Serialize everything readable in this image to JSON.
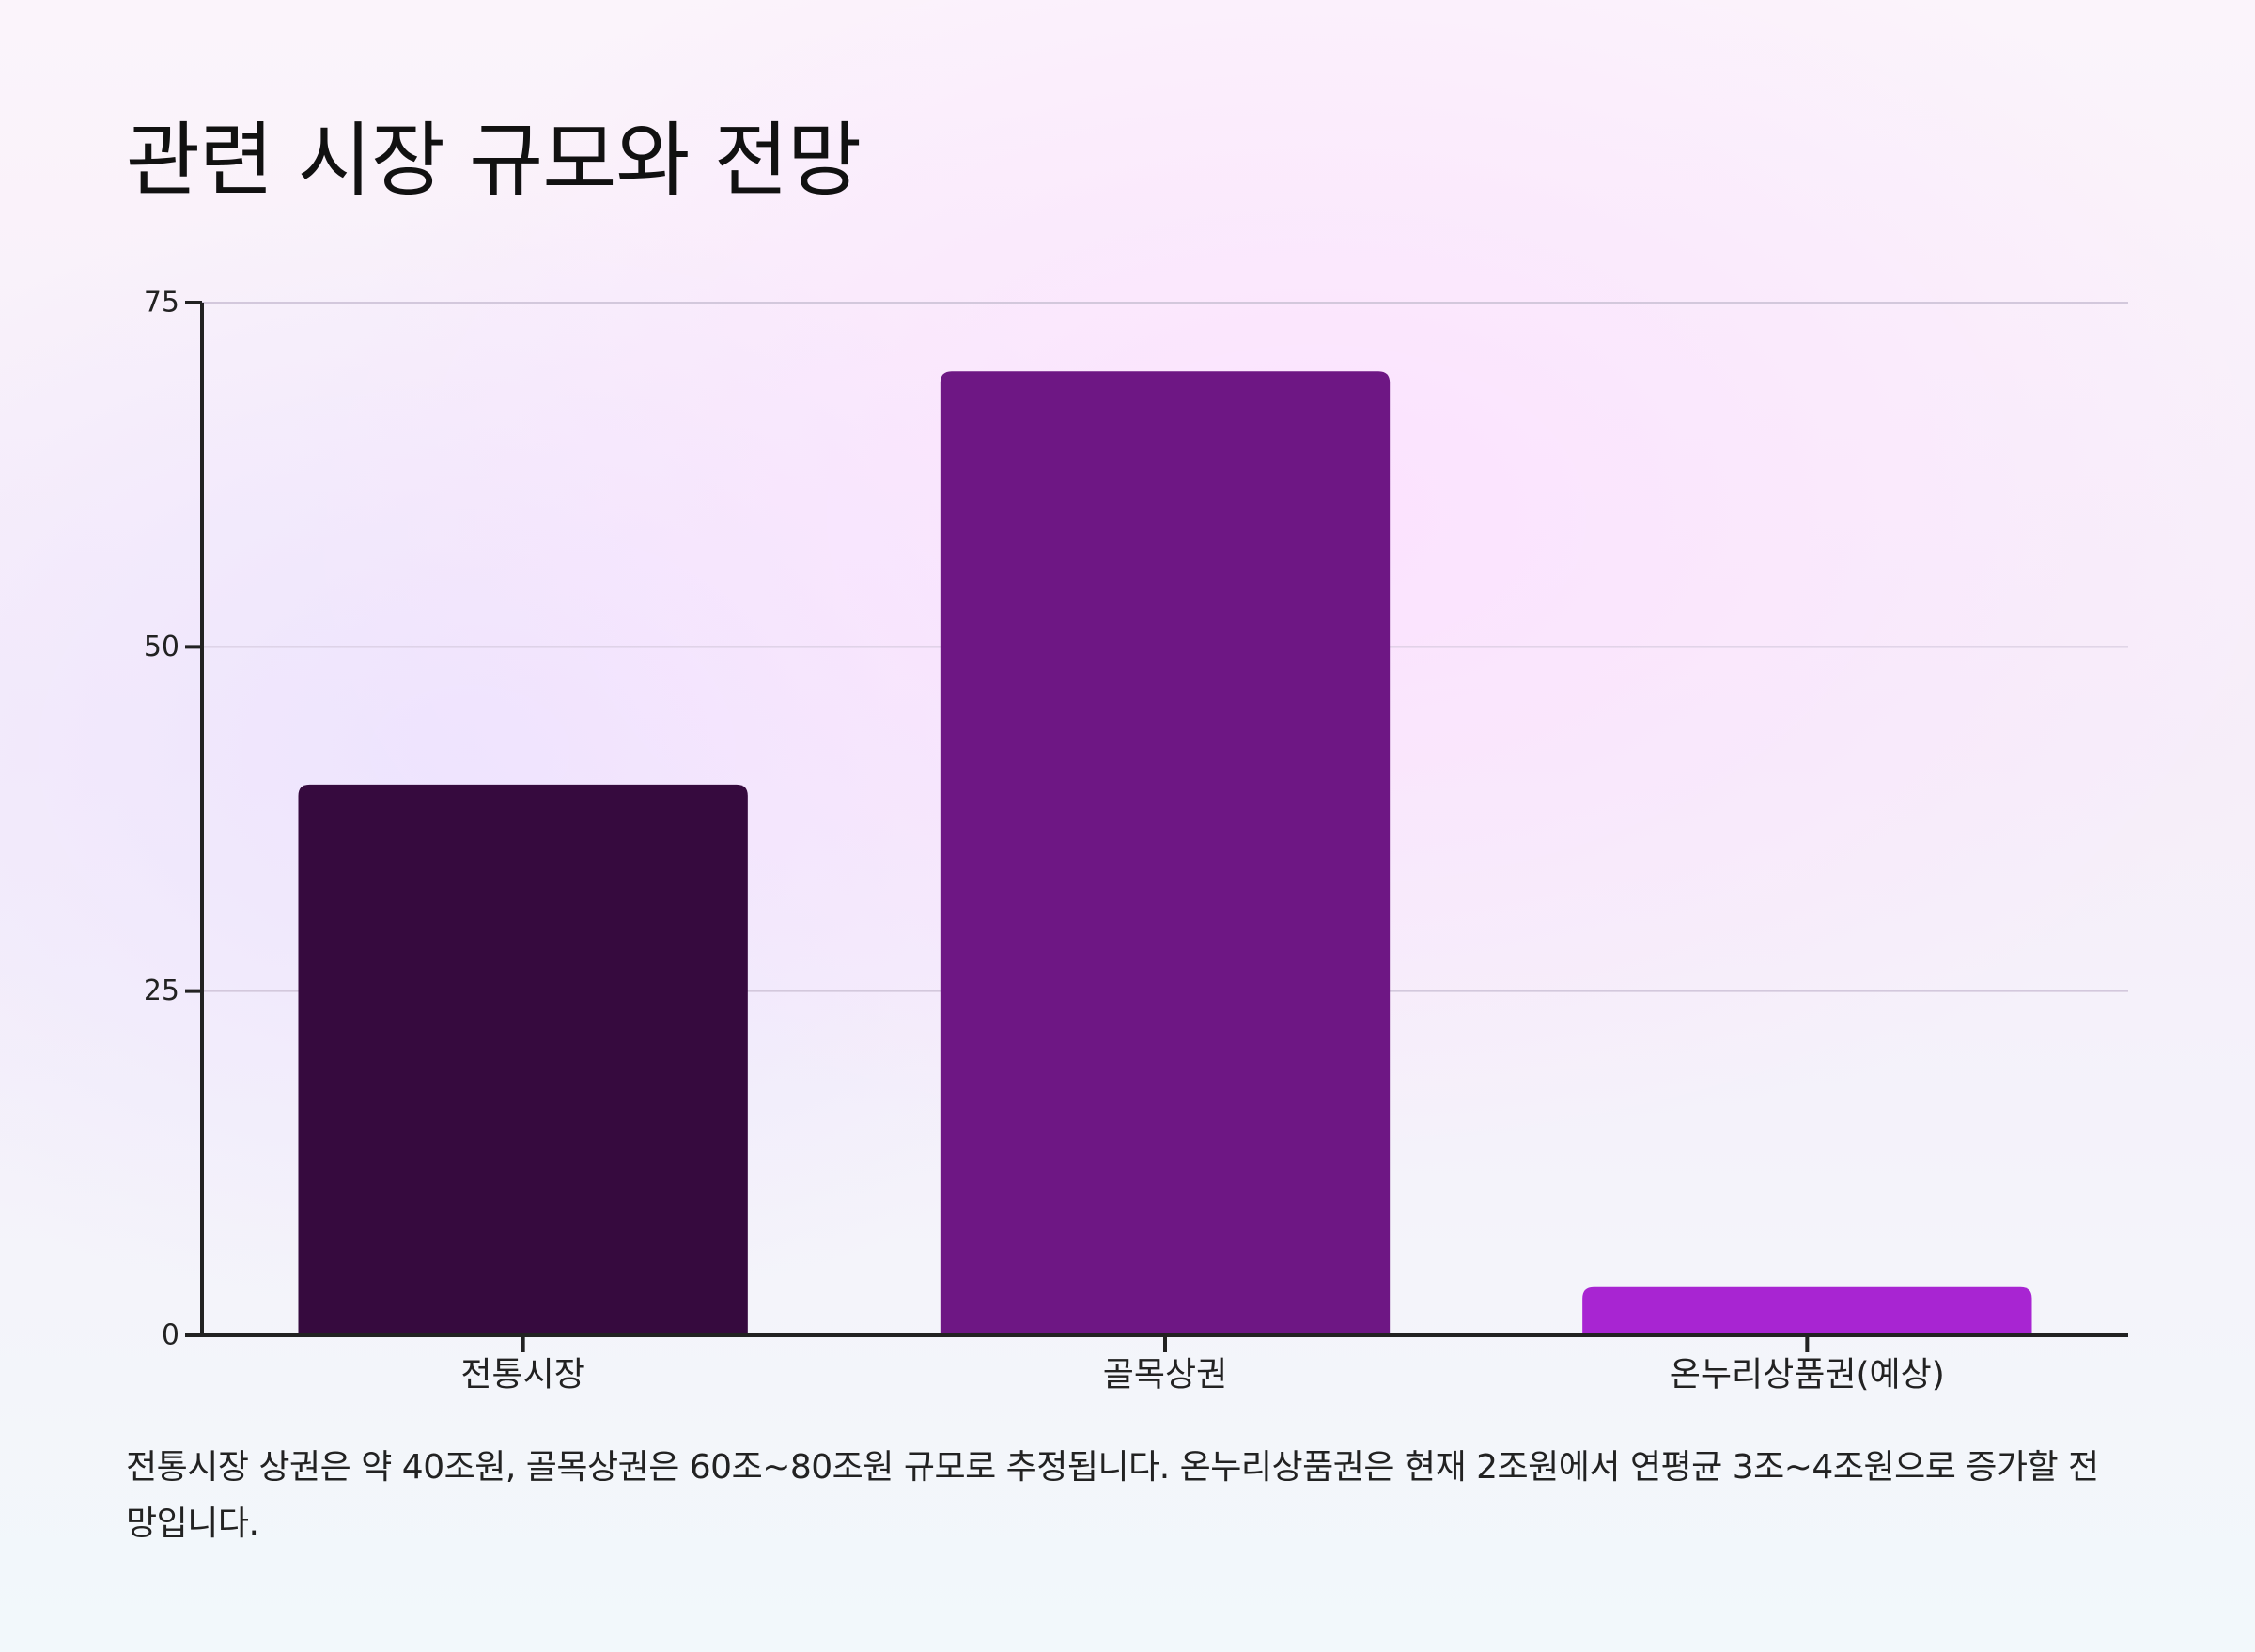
{
  "title": "관련 시장 규모와 전망",
  "caption": "전통시장 상권은 약 40조원, 골목상권은 60조~80조원 규모로 추정됩니다. 온누리상품권은 현재 2조원에서 연평균 3조~4조원으로 증가할 전망입니다.",
  "chart_data": {
    "type": "bar",
    "title": "",
    "xlabel": "",
    "ylabel": "",
    "categories": [
      "전통시장",
      "골목상권",
      "온누리상품권(예상)"
    ],
    "values": [
      40,
      70,
      3.5
    ],
    "colors": [
      "#360a3e",
      "#6e1784",
      "#a825d2"
    ],
    "ylim": [
      0,
      75
    ],
    "yticks": [
      0,
      25,
      50,
      75
    ],
    "ytick_labels": [
      "0",
      "25",
      "50",
      "75"
    ],
    "grid": true,
    "legend": "none",
    "grid_color": "#d3c8dc",
    "axis_color": "#222222"
  }
}
